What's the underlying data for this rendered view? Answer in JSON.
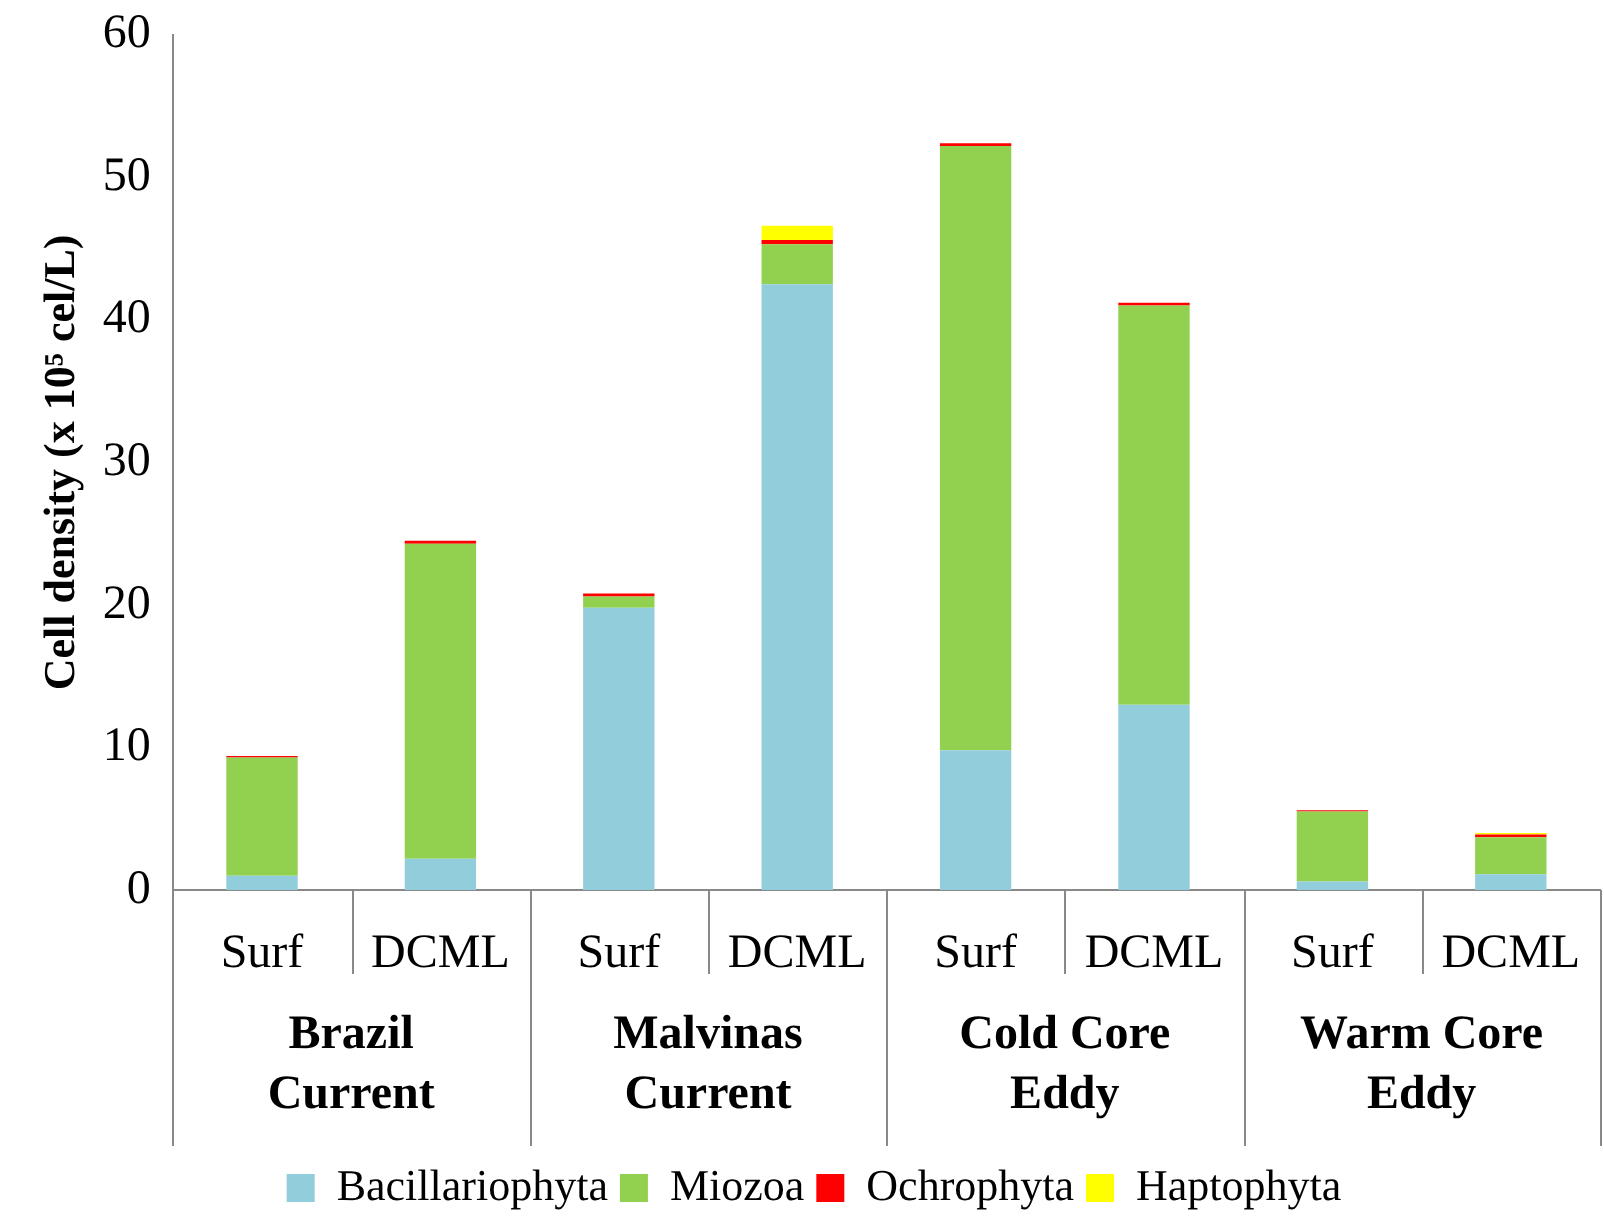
{
  "chart_data": {
    "type": "bar",
    "stacked": true,
    "ylabel": "Cell density (x 10⁵ cel/L)",
    "categories": [
      "Surf",
      "DCML",
      "Surf",
      "DCML",
      "Surf",
      "DCML",
      "Surf",
      "DCML"
    ],
    "annotations": [
      "Brazil Current",
      "Malvinas Current",
      "Cold Core Eddy",
      "Warm Core Eddy"
    ],
    "series": [
      {
        "name": "Bacillariophyta",
        "color": "#92cddc",
        "values": [
          1.0,
          2.2,
          19.8,
          42.5,
          9.8,
          13.0,
          0.6,
          1.1
        ]
      },
      {
        "name": "Miozoa",
        "color": "#92d050",
        "values": [
          8.3,
          22.1,
          0.8,
          2.8,
          42.4,
          28.0,
          4.9,
          2.6
        ]
      },
      {
        "name": "Ochrophyta",
        "color": "#ff0000",
        "values": [
          0.1,
          0.2,
          0.2,
          0.3,
          0.2,
          0.2,
          0.1,
          0.2
        ]
      },
      {
        "name": "Haptophyta",
        "color": "#ffff00",
        "values": [
          0,
          0,
          0,
          1.0,
          0,
          0,
          0,
          0.1
        ]
      }
    ],
    "ylim": [
      0,
      60
    ],
    "yticks": [
      0,
      10,
      20,
      30,
      40,
      50,
      60
    ],
    "grid": false,
    "legend": "bottom"
  }
}
